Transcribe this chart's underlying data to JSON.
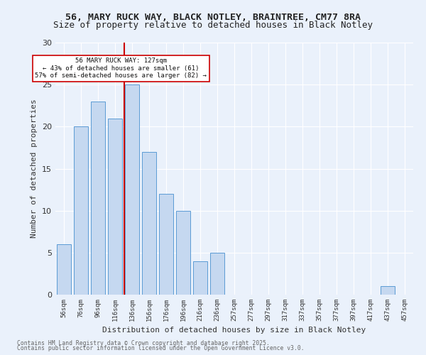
{
  "title1": "56, MARY RUCK WAY, BLACK NOTLEY, BRAINTREE, CM77 8RA",
  "title2": "Size of property relative to detached houses in Black Notley",
  "xlabel": "Distribution of detached houses by size in Black Notley",
  "ylabel": "Number of detached properties",
  "bins": [
    "56sqm",
    "76sqm",
    "96sqm",
    "116sqm",
    "136sqm",
    "156sqm",
    "176sqm",
    "196sqm",
    "216sqm",
    "236sqm",
    "257sqm",
    "277sqm",
    "297sqm",
    "317sqm",
    "337sqm",
    "357sqm",
    "377sqm",
    "397sqm",
    "417sqm",
    "437sqm",
    "457sqm"
  ],
  "values": [
    6,
    20,
    23,
    21,
    25,
    17,
    12,
    10,
    4,
    5,
    0,
    0,
    0,
    0,
    0,
    0,
    0,
    0,
    0,
    1,
    0
  ],
  "bar_color": "#c5d8f0",
  "bar_edge_color": "#5b9bd5",
  "ref_line_x": 127,
  "ref_line_label": "56 MARY RUCK WAY: 127sqm",
  "annotation_line2": "← 43% of detached houses are smaller (61)",
  "annotation_line3": "57% of semi-detached houses are larger (82) →",
  "ref_line_color": "#cc0000",
  "annotation_box_color": "#ffffff",
  "annotation_box_edge": "#cc0000",
  "ylim": [
    0,
    30
  ],
  "yticks": [
    0,
    5,
    10,
    15,
    20,
    25,
    30
  ],
  "footer1": "Contains HM Land Registry data © Crown copyright and database right 2025.",
  "footer2": "Contains public sector information licensed under the Open Government Licence v3.0.",
  "bg_color": "#eaf1fb",
  "plot_bg_color": "#eaf1fb"
}
